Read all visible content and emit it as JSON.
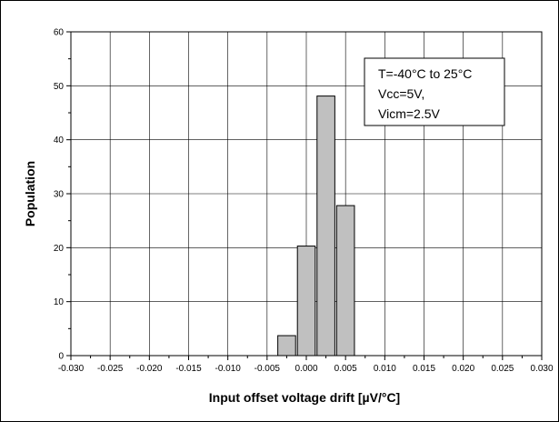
{
  "chart_data": {
    "type": "bar",
    "title": "",
    "xlabel": "Input offset voltage drift [µV/°C]",
    "ylabel": "Population",
    "xlim": [
      -0.03,
      0.03
    ],
    "ylim": [
      0,
      60
    ],
    "x_ticks": [
      "-0.030",
      "-0.025",
      "-0.020",
      "-0.015",
      "-0.010",
      "-0.005",
      "0.000",
      "0.005",
      "0.010",
      "0.015",
      "0.020",
      "0.025",
      "0.030"
    ],
    "y_ticks": [
      "0",
      "10",
      "20",
      "30",
      "40",
      "50",
      "60"
    ],
    "grid": true,
    "bin_width": 0.0025,
    "bars": [
      {
        "x": -0.0025,
        "value": 3.7
      },
      {
        "x": 0.0,
        "value": 20.3
      },
      {
        "x": 0.0025,
        "value": 48.1
      },
      {
        "x": 0.005,
        "value": 27.8
      }
    ],
    "annotation": [
      "T=-40°C to 25°C",
      "Vcc=5V,",
      "Vicm=2.5V"
    ],
    "bar_color": "#c0c0c0"
  }
}
